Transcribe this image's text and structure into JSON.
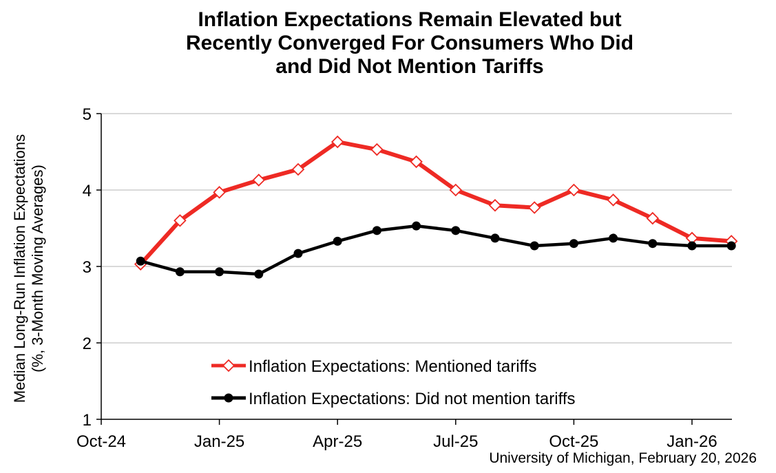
{
  "chart_data": {
    "type": "line",
    "title_lines": [
      "Inflation Expectations Remain Elevated but",
      "Recently Converged For Consumers Who Did",
      "and Did Not Mention Tariffs"
    ],
    "ylabel_lines": [
      "Median Long-Run Inflation Expectations",
      "(%, 3-Month Moving Averages)"
    ],
    "xlabel": "",
    "ylim": [
      1,
      5
    ],
    "yticks": [
      1,
      2,
      3,
      4,
      5
    ],
    "xtick_labels": [
      "Oct-24",
      "Jan-25",
      "Apr-25",
      "Jul-25",
      "Oct-25",
      "Jan-26"
    ],
    "x": [
      "Nov-24",
      "Dec-24",
      "Jan-25",
      "Feb-25",
      "Mar-25",
      "Apr-25",
      "May-25",
      "Jun-25",
      "Jul-25",
      "Aug-25",
      "Sep-25",
      "Oct-25",
      "Nov-25",
      "Dec-25",
      "Jan-26",
      "Feb-26"
    ],
    "grid": true,
    "legend_position": "bottom-center",
    "series": [
      {
        "name": "Inflation Expectations: Mentioned tariffs",
        "color": "#ee2a24",
        "marker": "open-diamond",
        "values": [
          3.03,
          3.6,
          3.97,
          4.13,
          4.27,
          4.63,
          4.53,
          4.37,
          4.0,
          3.8,
          3.77,
          4.0,
          3.87,
          3.63,
          3.37,
          3.33
        ]
      },
      {
        "name": "Inflation Expectations: Did not mention tariffs",
        "color": "#000000",
        "marker": "filled-circle",
        "values": [
          3.07,
          2.93,
          2.93,
          2.9,
          3.17,
          3.33,
          3.47,
          3.53,
          3.47,
          3.37,
          3.27,
          3.3,
          3.37,
          3.3,
          3.27,
          3.27
        ]
      }
    ],
    "source": "University of Michigan, February 20, 2026"
  }
}
